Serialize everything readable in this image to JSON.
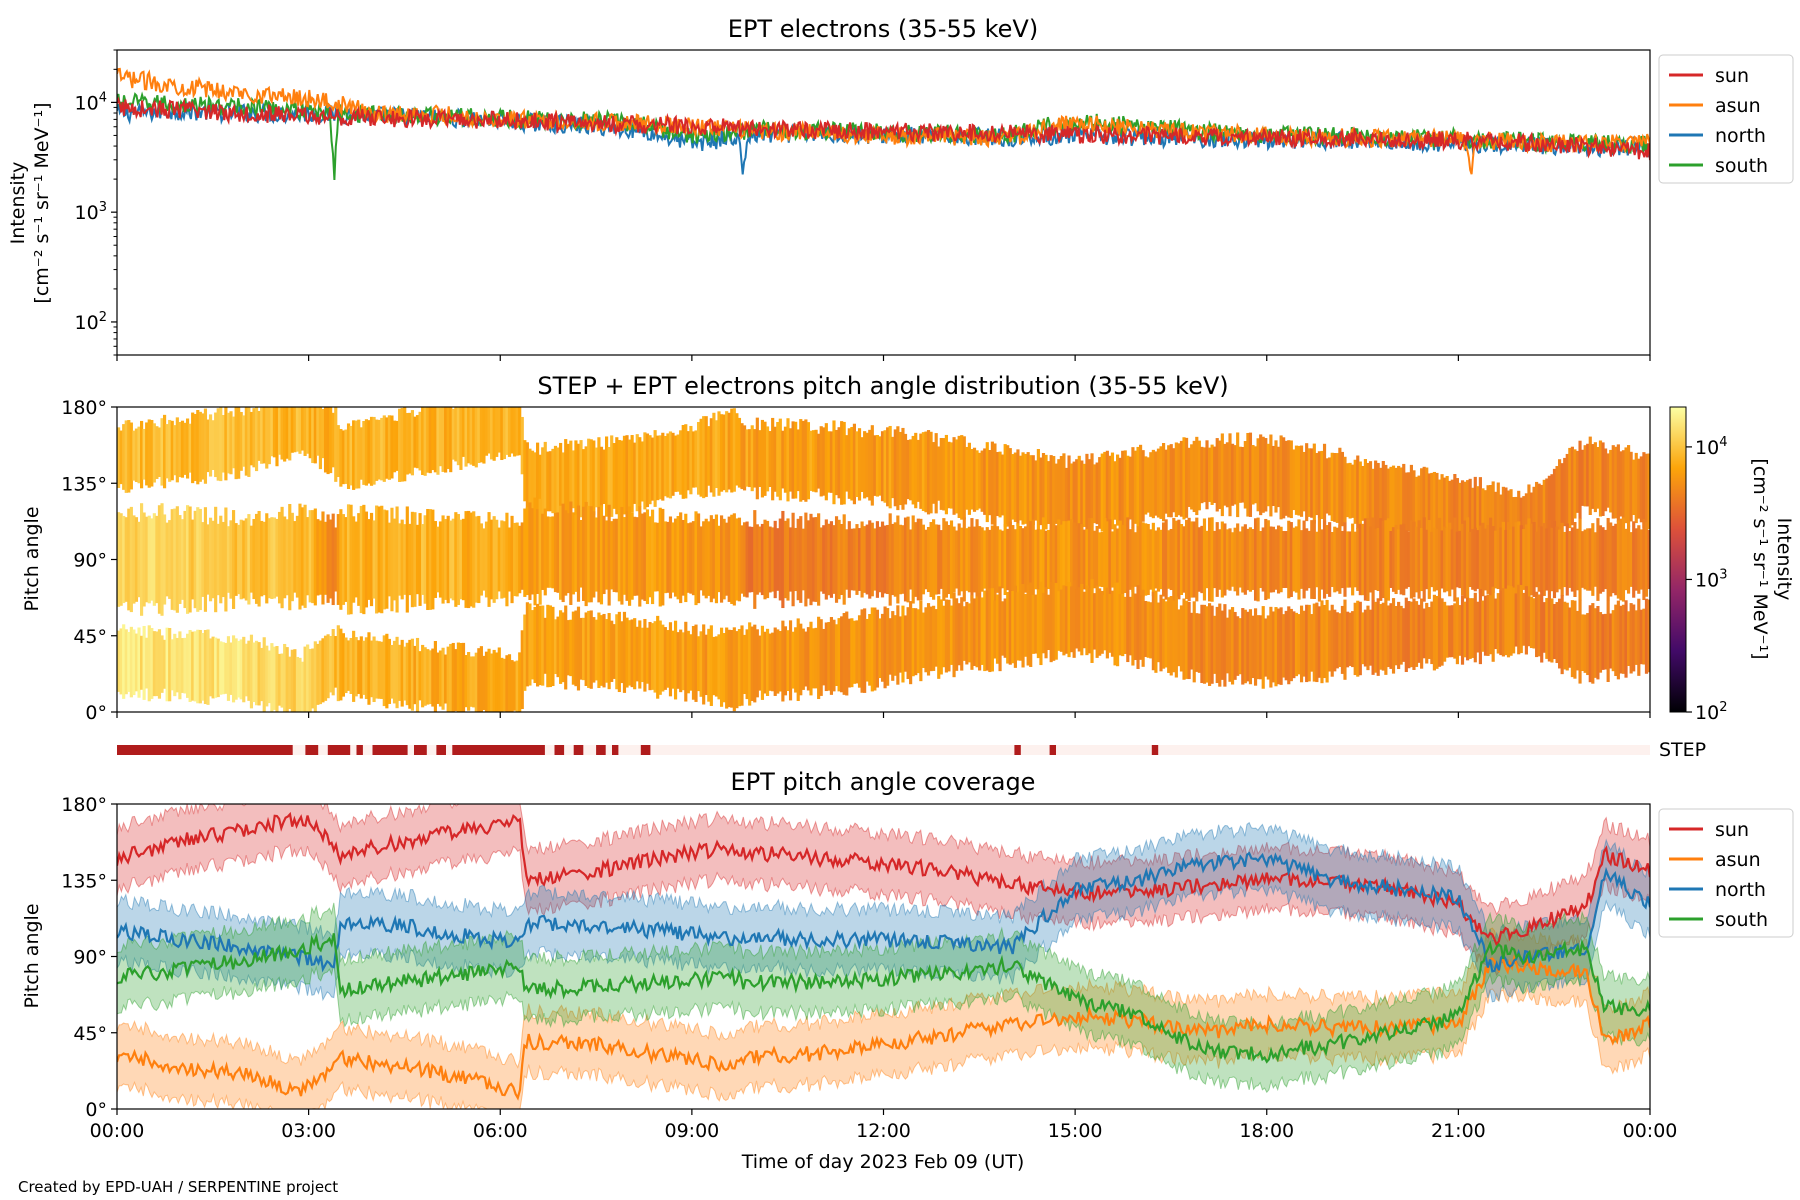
{
  "credit": "Created by EPD-UAH / SERPENTINE project",
  "chart_data": [
    {
      "id": "intensity",
      "type": "line",
      "title": "EPT electrons (35-55 keV)",
      "ylabel_line1": "Intensity",
      "ylabel_line2": "[cm⁻² s⁻¹ sr⁻¹ MeV⁻¹]",
      "yscale": "log",
      "ylim": [
        50,
        30000
      ],
      "y_ticks": [
        {
          "value": 100,
          "base": "10",
          "exp": "2"
        },
        {
          "value": 1000,
          "base": "10",
          "exp": "3"
        },
        {
          "value": 10000,
          "base": "10",
          "exp": "4"
        }
      ],
      "xlim_hours": [
        0,
        24
      ],
      "legend": {
        "placement": "outside-right",
        "entries": [
          "sun",
          "asun",
          "north",
          "south"
        ]
      },
      "colors": {
        "sun": "#d62728",
        "asun": "#ff7f0e",
        "north": "#1f77b4",
        "south": "#2ca02c"
      },
      "series": [
        {
          "name": "sun",
          "x_hours": [
            0,
            1,
            2,
            3,
            4,
            5,
            6,
            7,
            8,
            9,
            10,
            11,
            12,
            13,
            14,
            15,
            16,
            17,
            18,
            19,
            20,
            21,
            22,
            23,
            24
          ],
          "values": [
            9000,
            8500,
            8000,
            7500,
            7200,
            7000,
            6800,
            6600,
            6300,
            6000,
            5800,
            5600,
            5400,
            5300,
            5200,
            5100,
            5000,
            4900,
            4800,
            4700,
            4600,
            4500,
            4300,
            4000,
            3600
          ]
        },
        {
          "name": "asun",
          "x_hours": [
            0,
            1,
            2,
            3,
            4,
            5,
            6,
            7,
            8,
            9,
            10,
            11,
            12,
            13,
            14,
            15,
            16,
            17,
            18,
            19,
            20,
            21,
            22,
            23,
            24
          ],
          "values": [
            17000,
            14000,
            12000,
            11000,
            8000,
            7800,
            7000,
            6800,
            6500,
            6000,
            5500,
            5300,
            5000,
            4800,
            4700,
            6500,
            5800,
            5200,
            5000,
            4800,
            4700,
            4600,
            4300,
            4200,
            4500
          ]
        },
        {
          "name": "north",
          "x_hours": [
            0,
            1,
            2,
            3,
            4,
            5,
            6,
            7,
            8,
            9,
            10,
            11,
            12,
            13,
            14,
            15,
            16,
            17,
            18,
            19,
            20,
            21,
            22,
            23,
            24
          ],
          "values": [
            8000,
            8300,
            8000,
            7800,
            7600,
            7300,
            6800,
            6300,
            5800,
            4200,
            5000,
            5200,
            5000,
            4900,
            4800,
            5000,
            4800,
            4700,
            4600,
            4500,
            4400,
            4200,
            4000,
            3900,
            3800
          ]
        },
        {
          "name": "south",
          "x_hours": [
            0,
            1,
            2,
            3,
            4,
            5,
            6,
            7,
            8,
            9,
            10,
            11,
            12,
            13,
            14,
            15,
            16,
            17,
            18,
            19,
            20,
            21,
            22,
            23,
            24
          ],
          "values": [
            10000,
            9500,
            9000,
            8500,
            7800,
            7500,
            7200,
            7000,
            6600,
            5000,
            5600,
            5500,
            5300,
            5200,
            5100,
            6800,
            6000,
            5500,
            5200,
            5000,
            4800,
            4700,
            4400,
            4200,
            4100
          ]
        }
      ],
      "annotations": [
        {
          "series": "south",
          "x_hours": 3.4,
          "dip_value": 1700
        },
        {
          "series": "north",
          "x_hours": 9.8,
          "dip_value": 2100
        },
        {
          "series": "asun",
          "x_hours": 21.2,
          "dip_value": 2000
        }
      ]
    },
    {
      "id": "pad",
      "type": "heatmap",
      "title": "STEP + EPT electrons pitch angle distribution (35-55 keV)",
      "ylabel": "Pitch angle",
      "ylim": [
        0,
        180
      ],
      "y_ticks": [
        "0°",
        "45°",
        "90°",
        "135°",
        "180°"
      ],
      "y_tick_values": [
        0,
        45,
        90,
        135,
        180
      ],
      "colorbar": {
        "label_line1": "Intensity",
        "label_line2": "[cm⁻² s⁻¹ sr⁻¹ MeV⁻¹]",
        "scale": "log",
        "range": [
          100,
          20000
        ],
        "ticks": [
          {
            "value": 100,
            "base": "10",
            "exp": "2"
          },
          {
            "value": 1000,
            "base": "10",
            "exp": "3"
          },
          {
            "value": 10000,
            "base": "10",
            "exp": "4"
          }
        ],
        "colors": [
          "#000004",
          "#420a68",
          "#932667",
          "#dd513a",
          "#fca50a",
          "#fcffa4"
        ]
      },
      "bands": [
        {
          "name": "sun",
          "x_hours": [
            0,
            2,
            2.9,
            3.4,
            3.5,
            4.5,
            6.3,
            6.4,
            8,
            9.7,
            9.8,
            11,
            12,
            13,
            14,
            15,
            16,
            17,
            18,
            19,
            20,
            21,
            22,
            23,
            24
          ],
          "center_deg": [
            150,
            160,
            172,
            160,
            150,
            158,
            172,
            135,
            140,
            155,
            150,
            148,
            145,
            140,
            133,
            127,
            133,
            140,
            140,
            133,
            125,
            120,
            110,
            140,
            130
          ],
          "halfwidth_deg": [
            18,
            18,
            18,
            18,
            18,
            18,
            18,
            20,
            20,
            20,
            20,
            20,
            20,
            20,
            20,
            20,
            20,
            20,
            20,
            20,
            18,
            18,
            18,
            20,
            20
          ],
          "intensity": [
            9000,
            8800,
            8500,
            7000,
            8000,
            8200,
            8000,
            7500,
            7200,
            7000,
            6500,
            6300,
            6000,
            5800,
            5600,
            5500,
            5400,
            5300,
            5200,
            5100,
            5000,
            4900,
            4700,
            4600,
            4500
          ]
        },
        {
          "name": "north_south",
          "x_hours": [
            0,
            2,
            3,
            3.4,
            3.5,
            5,
            6.3,
            6.4,
            8,
            9.7,
            9.8,
            11,
            12,
            13,
            14,
            15,
            16,
            17,
            18,
            19,
            20,
            21,
            22,
            23,
            24
          ],
          "center_deg": [
            90,
            90,
            92,
            90,
            90,
            90,
            90,
            95,
            92,
            90,
            90,
            90,
            90,
            90,
            90,
            90,
            90,
            90,
            90,
            90,
            90,
            90,
            90,
            90,
            90
          ],
          "halfwidth_deg": [
            28,
            24,
            26,
            22,
            28,
            24,
            22,
            26,
            24,
            22,
            24,
            22,
            22,
            20,
            20,
            20,
            20,
            20,
            20,
            20,
            20,
            20,
            20,
            20,
            20
          ],
          "intensity": [
            13000,
            10000,
            9000,
            3500,
            8000,
            8500,
            7000,
            6500,
            6000,
            5500,
            4000,
            4200,
            4500,
            5000,
            5500,
            5600,
            5300,
            5000,
            4900,
            4800,
            4700,
            4600,
            4500,
            4400,
            4300
          ]
        },
        {
          "name": "asun",
          "x_hours": [
            0,
            2,
            2.9,
            3.4,
            3.5,
            5,
            6.3,
            6.4,
            8,
            9.7,
            9.8,
            11,
            12,
            13,
            14,
            15,
            16,
            17,
            18,
            19,
            20,
            21,
            22,
            23,
            24
          ],
          "center_deg": [
            30,
            25,
            15,
            30,
            28,
            20,
            15,
            40,
            35,
            25,
            28,
            32,
            38,
            45,
            50,
            55,
            50,
            40,
            38,
            42,
            45,
            48,
            55,
            40,
            45
          ],
          "halfwidth_deg": [
            18,
            18,
            18,
            18,
            18,
            18,
            18,
            20,
            20,
            20,
            20,
            20,
            20,
            20,
            20,
            20,
            20,
            20,
            20,
            20,
            18,
            18,
            18,
            20,
            20
          ],
          "intensity": [
            15000,
            14000,
            12000,
            9000,
            8000,
            7500,
            7000,
            6800,
            6500,
            6000,
            5800,
            5600,
            5500,
            5600,
            5700,
            5500,
            5200,
            5000,
            4900,
            4800,
            4700,
            4600,
            4500,
            4400,
            4300
          ]
        }
      ]
    },
    {
      "id": "step",
      "type": "bar",
      "label": "STEP",
      "coverage_hours": [
        [
          0.0,
          2.75
        ],
        [
          2.95,
          3.15
        ],
        [
          3.3,
          3.65
        ],
        [
          3.75,
          3.85
        ],
        [
          4.0,
          4.55
        ],
        [
          4.65,
          4.85
        ],
        [
          5.0,
          5.15
        ],
        [
          5.25,
          6.7
        ],
        [
          6.85,
          7.0
        ],
        [
          7.15,
          7.3
        ],
        [
          7.5,
          7.65
        ],
        [
          7.75,
          7.85
        ],
        [
          8.2,
          8.35
        ],
        [
          14.05,
          14.15
        ],
        [
          14.6,
          14.7
        ],
        [
          16.2,
          16.3
        ]
      ],
      "colors": {
        "on": "#b01c1c",
        "off": "#fdf1ee"
      }
    },
    {
      "id": "coverage",
      "type": "area",
      "title": "EPT pitch angle coverage",
      "ylabel": "Pitch angle",
      "xlabel": "Time of day 2023 Feb 09 (UT)",
      "ylim": [
        0,
        180
      ],
      "y_ticks": [
        "0°",
        "45°",
        "90°",
        "135°",
        "180°"
      ],
      "y_tick_values": [
        0,
        45,
        90,
        135,
        180
      ],
      "xlim_hours": [
        0,
        24
      ],
      "x_ticks": [
        "00:00",
        "03:00",
        "06:00",
        "09:00",
        "12:00",
        "15:00",
        "18:00",
        "21:00",
        "00:00"
      ],
      "legend": {
        "placement": "outside-right",
        "entries": [
          "sun",
          "asun",
          "north",
          "south"
        ]
      },
      "colors": {
        "sun": "#d62728",
        "asun": "#ff7f0e",
        "north": "#1f77b4",
        "south": "#2ca02c"
      },
      "series": [
        {
          "name": "sun",
          "x_hours": [
            0,
            1,
            2,
            2.9,
            3.4,
            3.5,
            4.5,
            5.5,
            6.3,
            6.4,
            7.5,
            8.5,
            9.7,
            9.8,
            11,
            12,
            13,
            14,
            15,
            16,
            17,
            18,
            19,
            20,
            21,
            21.5,
            22,
            23,
            23.3,
            24
          ],
          "values": [
            148,
            158,
            165,
            172,
            155,
            150,
            158,
            165,
            170,
            135,
            140,
            148,
            155,
            152,
            148,
            145,
            140,
            133,
            127,
            128,
            132,
            135,
            135,
            130,
            120,
            100,
            105,
            120,
            150,
            140
          ],
          "halfwidth": 18
        },
        {
          "name": "asun",
          "x_hours": [
            0,
            1,
            2,
            2.9,
            3.4,
            3.5,
            4.5,
            5.5,
            6.3,
            6.4,
            7.5,
            8.5,
            9.7,
            9.8,
            11,
            12,
            13,
            14,
            15,
            16,
            17,
            18,
            19,
            20,
            21,
            21.5,
            22,
            23,
            23.3,
            24
          ],
          "values": [
            32,
            25,
            20,
            10,
            25,
            30,
            25,
            18,
            10,
            40,
            38,
            32,
            25,
            30,
            33,
            38,
            44,
            50,
            55,
            52,
            45,
            50,
            48,
            48,
            50,
            85,
            85,
            80,
            40,
            50
          ],
          "halfwidth": 18
        },
        {
          "name": "north",
          "x_hours": [
            0,
            1,
            2,
            2.9,
            3.4,
            3.5,
            4.5,
            5.5,
            6.3,
            6.4,
            7.5,
            8.5,
            9.7,
            9.8,
            11,
            12,
            13,
            14,
            15,
            16,
            17,
            18,
            19,
            20,
            21,
            21.5,
            22,
            23,
            23.3,
            24
          ],
          "values": [
            105,
            100,
            95,
            90,
            85,
            110,
            108,
            102,
            98,
            110,
            108,
            105,
            100,
            102,
            100,
            100,
            98,
            95,
            130,
            135,
            145,
            148,
            135,
            130,
            125,
            85,
            90,
            95,
            140,
            120
          ],
          "halfwidth": 18
        },
        {
          "name": "south",
          "x_hours": [
            0,
            1,
            2,
            2.9,
            3.4,
            3.5,
            4.5,
            5.5,
            6.3,
            6.4,
            7.5,
            8.5,
            9.7,
            9.8,
            11,
            12,
            13,
            14,
            15,
            16,
            17,
            18,
            19,
            20,
            21,
            21.5,
            22,
            23,
            23.3,
            24
          ],
          "values": [
            78,
            82,
            88,
            95,
            100,
            70,
            75,
            80,
            85,
            70,
            72,
            75,
            78,
            75,
            75,
            77,
            80,
            85,
            65,
            55,
            35,
            32,
            38,
            45,
            55,
            95,
            90,
            95,
            60,
            58
          ],
          "halfwidth": 18
        }
      ]
    }
  ]
}
